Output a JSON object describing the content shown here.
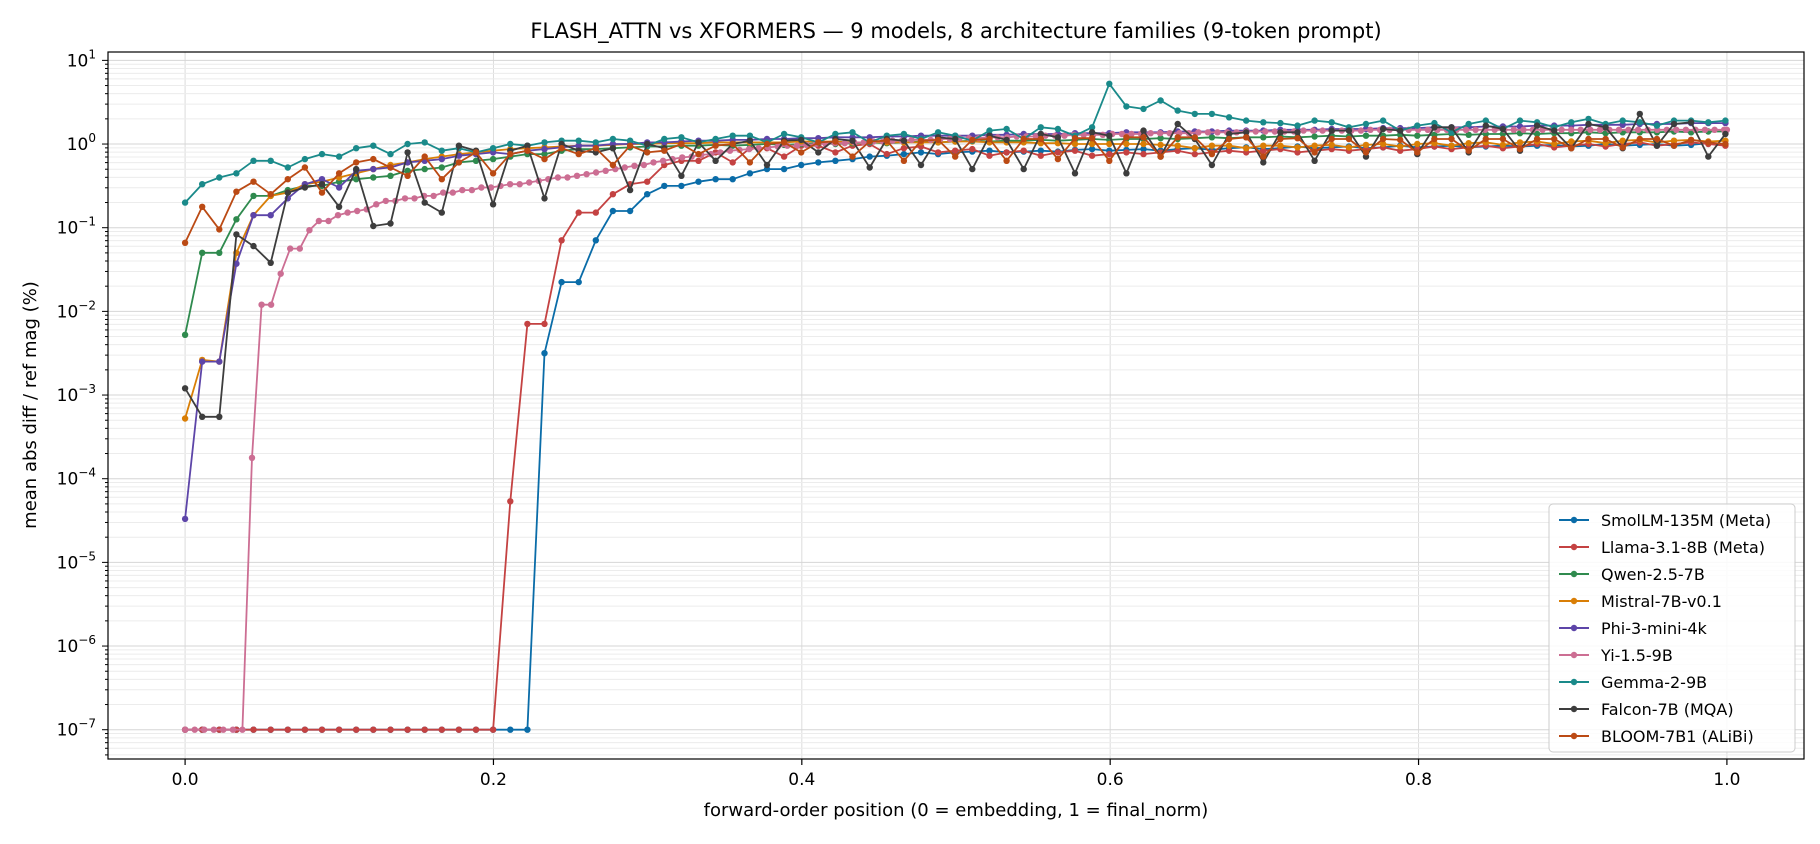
{
  "chart_data": {
    "type": "line",
    "title": "FLASH_ATTN vs XFORMERS — 9 models, 8 architecture families (9-token prompt)",
    "xlabel": "forward-order position (0 = embedding, 1 = final_norm)",
    "ylabel": "mean abs diff / ref mag (%)",
    "xlim": [
      -0.05,
      1.05
    ],
    "ylim_log10": [
      -7.35,
      1.1
    ],
    "y_scale": "log",
    "grid": true,
    "legend_position": "lower-right",
    "x_ticks": [
      0.0,
      0.2,
      0.4,
      0.6,
      0.8,
      1.0
    ],
    "x_tick_labels": [
      "0.0",
      "0.2",
      "0.4",
      "0.6",
      "0.8",
      "1.0"
    ],
    "y_tick_exponents": [
      -7,
      -6,
      -5,
      -4,
      -3,
      -2,
      -1,
      0,
      1
    ],
    "y_tick_base": "10",
    "series": [
      {
        "name": "SmolLM-135M (Meta)",
        "color": "#0a6ca8",
        "step": 0.0111,
        "log_values": [
          -7,
          -7,
          -7,
          -7,
          -7,
          -7,
          -7,
          -7,
          -7,
          -7,
          -7,
          -7,
          -7,
          -7,
          -7,
          -7,
          -7,
          -7,
          -7,
          -7,
          -7,
          -2.5,
          -1.65,
          -1.65,
          -1.15,
          -0.8,
          -0.8,
          -0.6,
          -0.5,
          -0.5,
          -0.45,
          -0.42,
          -0.42,
          -0.35,
          -0.3,
          -0.3,
          -0.25,
          -0.22,
          -0.2,
          -0.18,
          -0.15,
          -0.14,
          -0.12,
          -0.1,
          -0.12,
          -0.1,
          -0.09,
          -0.08,
          -0.1,
          -0.09,
          -0.08,
          -0.09,
          -0.07,
          -0.06,
          -0.08,
          -0.07,
          -0.06,
          -0.08,
          -0.06,
          -0.05,
          -0.07,
          -0.05,
          -0.04,
          -0.06,
          -0.05,
          -0.03,
          -0.05,
          -0.04,
          -0.03,
          -0.05,
          -0.04,
          -0.02,
          -0.04,
          -0.03,
          -0.02,
          -0.04,
          -0.03,
          -0.02,
          -0.03,
          -0.02,
          -0.01,
          -0.03,
          -0.02,
          0.0,
          -0.02,
          -0.01,
          0.0,
          -0.02,
          -0.01,
          0.01,
          -0.01
        ]
      },
      {
        "name": "Llama-3.1-8B (Meta)",
        "color": "#c44242",
        "step": 0.0111,
        "log_values": [
          -7,
          -7,
          -7,
          -7,
          -7,
          -7,
          -7,
          -7,
          -7,
          -7,
          -7,
          -7,
          -7,
          -7,
          -7,
          -7,
          -7,
          -7,
          -7,
          -4.27,
          -2.15,
          -2.15,
          -1.15,
          -0.82,
          -0.82,
          -0.6,
          -0.48,
          -0.45,
          -0.25,
          -0.2,
          -0.2,
          -0.1,
          -0.22,
          -0.05,
          -0.05,
          -0.15,
          -0.02,
          -0.02,
          -0.1,
          -0.02,
          0.0,
          -0.12,
          -0.05,
          -0.03,
          -0.1,
          -0.08,
          -0.06,
          -0.14,
          -0.1,
          -0.08,
          -0.14,
          -0.1,
          -0.08,
          -0.14,
          -0.12,
          -0.1,
          -0.12,
          -0.1,
          -0.08,
          -0.12,
          -0.1,
          -0.08,
          -0.1,
          -0.08,
          -0.06,
          -0.1,
          -0.08,
          -0.06,
          -0.08,
          -0.06,
          -0.04,
          -0.08,
          -0.06,
          -0.03,
          -0.06,
          -0.04,
          -0.02,
          -0.05,
          -0.03,
          0.0,
          -0.04,
          -0.02,
          0.0,
          -0.03,
          0.0,
          0.02,
          -0.02,
          0.0,
          0.02,
          0.0,
          -0.02
        ]
      },
      {
        "name": "Qwen-2.5-7B",
        "color": "#2f8a4e",
        "step": 0.0111,
        "log_values": [
          -2.28,
          -1.3,
          -1.3,
          -0.9,
          -0.62,
          -0.62,
          -0.55,
          -0.5,
          -0.5,
          -0.45,
          -0.42,
          -0.4,
          -0.38,
          -0.32,
          -0.3,
          -0.28,
          -0.22,
          -0.2,
          -0.18,
          -0.15,
          -0.12,
          -0.12,
          -0.08,
          -0.06,
          -0.06,
          -0.05,
          -0.04,
          -0.03,
          -0.03,
          -0.02,
          -0.02,
          -0.01,
          -0.02,
          -0.01,
          0.0,
          -0.01,
          0.0,
          0.01,
          0.0,
          0.01,
          0.02,
          0.01,
          0.02,
          0.03,
          0.02,
          0.03,
          0.04,
          0.03,
          0.04,
          0.04,
          0.05,
          0.04,
          0.05,
          0.06,
          0.05,
          0.06,
          0.06,
          0.07,
          0.06,
          0.07,
          0.08,
          0.07,
          0.08,
          0.08,
          0.09,
          0.08,
          0.09,
          0.1,
          0.09,
          0.1,
          0.1,
          0.11,
          0.1,
          0.11,
          0.12,
          0.11,
          0.12,
          0.12,
          0.13,
          0.12,
          0.13,
          0.13,
          0.14,
          0.13,
          0.14,
          0.14,
          0.14,
          0.15,
          0.14,
          0.15,
          0.15
        ]
      },
      {
        "name": "Mistral-7B-v0.1",
        "color": "#d97e06",
        "step": 0.0111,
        "log_values": [
          -3.28,
          -2.58,
          -2.6,
          -1.3,
          -0.85,
          -0.62,
          -0.58,
          -0.48,
          -0.45,
          -0.4,
          -0.35,
          -0.3,
          -0.25,
          -0.22,
          -0.18,
          -0.15,
          -0.12,
          -0.1,
          -0.08,
          -0.06,
          -0.05,
          -0.04,
          -0.03,
          -0.02,
          -0.02,
          -0.01,
          0.0,
          0.0,
          0.01,
          0.01,
          0.01,
          0.02,
          0.02,
          0.02,
          0.02,
          0.02,
          0.03,
          0.03,
          0.03,
          0.02,
          0.02,
          0.02,
          0.02,
          0.02,
          0.02,
          0.03,
          0.03,
          0.02,
          0.02,
          0.02,
          0.01,
          0.01,
          0.0,
          0.0,
          0.0,
          0.0,
          0.0,
          -0.01,
          -0.02,
          -0.05,
          -0.02,
          -0.02,
          -0.05,
          -0.02,
          -0.02,
          -0.04,
          -0.02,
          -0.01,
          -0.04,
          -0.01,
          0.0,
          -0.03,
          0.0,
          0.01,
          -0.02,
          0.01,
          0.02,
          -0.01,
          0.02,
          0.03,
          0.0,
          0.03,
          0.04,
          0.01,
          0.04,
          0.05,
          0.02,
          0.04,
          0.05,
          0.03,
          0.04
        ]
      },
      {
        "name": "Phi-3-mini-4k",
        "color": "#5d45a8",
        "step": 0.0111,
        "log_values": [
          -4.48,
          -2.6,
          -2.6,
          -1.43,
          -0.85,
          -0.85,
          -0.65,
          -0.48,
          -0.42,
          -0.52,
          -0.32,
          -0.3,
          -0.28,
          -0.22,
          -0.2,
          -0.18,
          -0.14,
          -0.12,
          -0.1,
          -0.12,
          -0.08,
          -0.06,
          -0.04,
          -0.02,
          -0.02,
          0.0,
          0.0,
          0.02,
          0.02,
          0.03,
          0.04,
          0.04,
          0.05,
          0.05,
          0.06,
          0.06,
          0.07,
          0.07,
          0.08,
          0.08,
          0.08,
          0.09,
          0.09,
          0.1,
          0.1,
          0.1,
          0.1,
          0.11,
          0.11,
          0.12,
          0.12,
          0.12,
          0.13,
          0.13,
          0.13,
          0.14,
          0.14,
          0.14,
          0.15,
          0.15,
          0.15,
          0.16,
          0.16,
          0.16,
          0.17,
          0.17,
          0.17,
          0.18,
          0.18,
          0.18,
          0.19,
          0.19,
          0.19,
          0.2,
          0.2,
          0.2,
          0.21,
          0.21,
          0.21,
          0.22,
          0.22,
          0.22,
          0.23,
          0.23,
          0.23,
          0.24,
          0.24,
          0.24,
          0.25,
          0.25,
          0.25
        ]
      },
      {
        "name": "Yi-1.5-9B",
        "color": "#cc6e93",
        "step": 0.0062,
        "log_values": [
          -7,
          -7,
          -7,
          -7,
          -7,
          -7,
          -7,
          -3.75,
          -1.92,
          -1.92,
          -1.55,
          -1.25,
          -1.25,
          -1.03,
          -0.92,
          -0.92,
          -0.85,
          -0.82,
          -0.8,
          -0.78,
          -0.72,
          -0.68,
          -0.68,
          -0.65,
          -0.65,
          -0.62,
          -0.62,
          -0.58,
          -0.58,
          -0.55,
          -0.55,
          -0.52,
          -0.52,
          -0.5,
          -0.48,
          -0.48,
          -0.46,
          -0.44,
          -0.42,
          -0.4,
          -0.4,
          -0.38,
          -0.36,
          -0.34,
          -0.32,
          -0.3,
          -0.28,
          -0.26,
          -0.25,
          -0.22,
          -0.2,
          -0.18,
          -0.16,
          -0.15,
          -0.13,
          -0.12,
          -0.1,
          -0.08,
          -0.07,
          -0.06,
          -0.05,
          -0.04,
          -0.03,
          -0.02,
          -0.02,
          -0.01,
          0.0,
          0.0,
          0.01,
          0.01,
          0.02,
          0.02,
          0.03,
          0.03,
          0.04,
          0.04,
          0.05,
          0.05,
          0.05,
          0.06,
          0.06,
          0.07,
          0.07,
          0.07,
          0.08,
          0.08,
          0.08,
          0.09,
          0.09,
          0.09,
          0.1,
          0.1,
          0.1,
          0.11,
          0.11,
          0.11,
          0.11,
          0.12,
          0.12,
          0.12,
          0.12,
          0.13,
          0.13,
          0.13,
          0.13,
          0.13,
          0.14,
          0.14,
          0.14,
          0.14,
          0.14,
          0.15,
          0.15,
          0.15,
          0.15,
          0.15,
          0.15,
          0.16,
          0.16,
          0.16,
          0.16,
          0.16,
          0.16,
          0.16,
          0.17,
          0.17,
          0.17,
          0.17,
          0.17,
          0.17,
          0.17,
          0.17,
          0.17,
          0.17,
          0.17,
          0.17,
          0.17,
          0.17,
          0.17,
          0.17,
          0.17,
          0.17,
          0.17,
          0.17,
          0.17,
          0.17,
          0.17,
          0.17,
          0.17,
          0.17,
          0.17,
          0.17,
          0.17,
          0.17,
          0.17,
          0.17,
          0.17,
          0.17,
          0.17,
          0.17,
          0.17,
          0.17,
          0.17
        ]
      },
      {
        "name": "Gemma-2-9B",
        "color": "#1a8a8a",
        "step": 0.0111,
        "log_values": [
          -0.7,
          -0.48,
          -0.4,
          -0.35,
          -0.2,
          -0.2,
          -0.28,
          -0.18,
          -0.12,
          -0.15,
          -0.05,
          -0.02,
          -0.12,
          0.0,
          0.02,
          -0.08,
          -0.05,
          -0.1,
          -0.05,
          0.0,
          -0.02,
          0.02,
          0.04,
          0.04,
          0.02,
          0.06,
          0.04,
          -0.02,
          0.06,
          0.08,
          0.02,
          0.06,
          0.1,
          0.1,
          0.02,
          0.12,
          0.08,
          0.02,
          0.12,
          0.14,
          0.02,
          0.1,
          0.12,
          0.06,
          0.14,
          0.1,
          0.04,
          0.16,
          0.18,
          0.06,
          0.2,
          0.18,
          0.1,
          0.2,
          0.72,
          0.45,
          0.42,
          0.52,
          0.4,
          0.36,
          0.36,
          0.32,
          0.28,
          0.26,
          0.25,
          0.22,
          0.28,
          0.26,
          0.2,
          0.24,
          0.28,
          0.16,
          0.22,
          0.25,
          0.14,
          0.24,
          0.28,
          0.18,
          0.28,
          0.26,
          0.2,
          0.26,
          0.3,
          0.24,
          0.28,
          0.26,
          0.22,
          0.28,
          0.28,
          0.26,
          0.28
        ]
      },
      {
        "name": "Falcon-7B (MQA)",
        "color": "#3d3d3d",
        "step": 0.0111,
        "log_values": [
          -2.92,
          -3.26,
          -3.26,
          -1.08,
          -1.22,
          -1.42,
          -0.58,
          -0.52,
          -0.48,
          -0.75,
          -0.3,
          -0.98,
          -0.95,
          -0.1,
          -0.7,
          -0.82,
          -0.02,
          -0.08,
          -0.72,
          -0.08,
          -0.02,
          -0.65,
          0.0,
          -0.08,
          -0.1,
          -0.05,
          -0.55,
          0.0,
          -0.05,
          -0.38,
          0.02,
          -0.2,
          0.0,
          0.04,
          -0.25,
          0.04,
          0.05,
          -0.1,
          0.06,
          0.04,
          -0.28,
          0.06,
          0.04,
          -0.25,
          0.08,
          0.06,
          -0.3,
          0.1,
          0.05,
          -0.3,
          0.12,
          0.08,
          -0.35,
          0.14,
          0.1,
          -0.35,
          0.16,
          -0.15,
          0.24,
          0.06,
          -0.25,
          0.12,
          0.14,
          -0.22,
          0.14,
          0.14,
          -0.2,
          0.16,
          0.16,
          -0.15,
          0.18,
          0.16,
          -0.12,
          0.2,
          0.2,
          -0.1,
          0.22,
          0.18,
          -0.08,
          0.22,
          0.16,
          -0.05,
          0.24,
          0.2,
          -0.05,
          0.36,
          -0.02,
          0.24,
          0.26,
          -0.15,
          0.12
        ]
      },
      {
        "name": "BLOOM-7B1 (ALiBi)",
        "color": "#bb4a14",
        "step": 0.0111,
        "log_values": [
          -1.18,
          -0.75,
          -1.02,
          -0.57,
          -0.45,
          -0.6,
          -0.42,
          -0.28,
          -0.58,
          -0.35,
          -0.22,
          -0.18,
          -0.28,
          -0.38,
          -0.15,
          -0.42,
          -0.22,
          -0.1,
          -0.35,
          -0.12,
          -0.08,
          -0.18,
          -0.05,
          -0.12,
          -0.05,
          -0.25,
          -0.02,
          -0.1,
          -0.08,
          0.0,
          -0.12,
          -0.02,
          0.0,
          -0.22,
          0.0,
          0.02,
          -0.1,
          0.02,
          0.03,
          -0.15,
          0.03,
          0.04,
          -0.2,
          0.04,
          0.05,
          -0.15,
          0.05,
          0.06,
          -0.2,
          0.06,
          0.06,
          -0.18,
          0.07,
          0.07,
          -0.2,
          0.08,
          0.08,
          -0.15,
          0.08,
          0.08,
          -0.12,
          0.06,
          0.08,
          -0.15,
          0.06,
          0.07,
          -0.1,
          0.06,
          0.06,
          -0.1,
          0.06,
          0.05,
          -0.1,
          0.06,
          0.06,
          -0.08,
          0.06,
          0.06,
          -0.06,
          0.06,
          0.06,
          -0.05,
          0.06,
          0.06,
          -0.04,
          0.06,
          0.06,
          -0.02,
          0.05,
          0.02,
          0.0
        ]
      }
    ]
  }
}
